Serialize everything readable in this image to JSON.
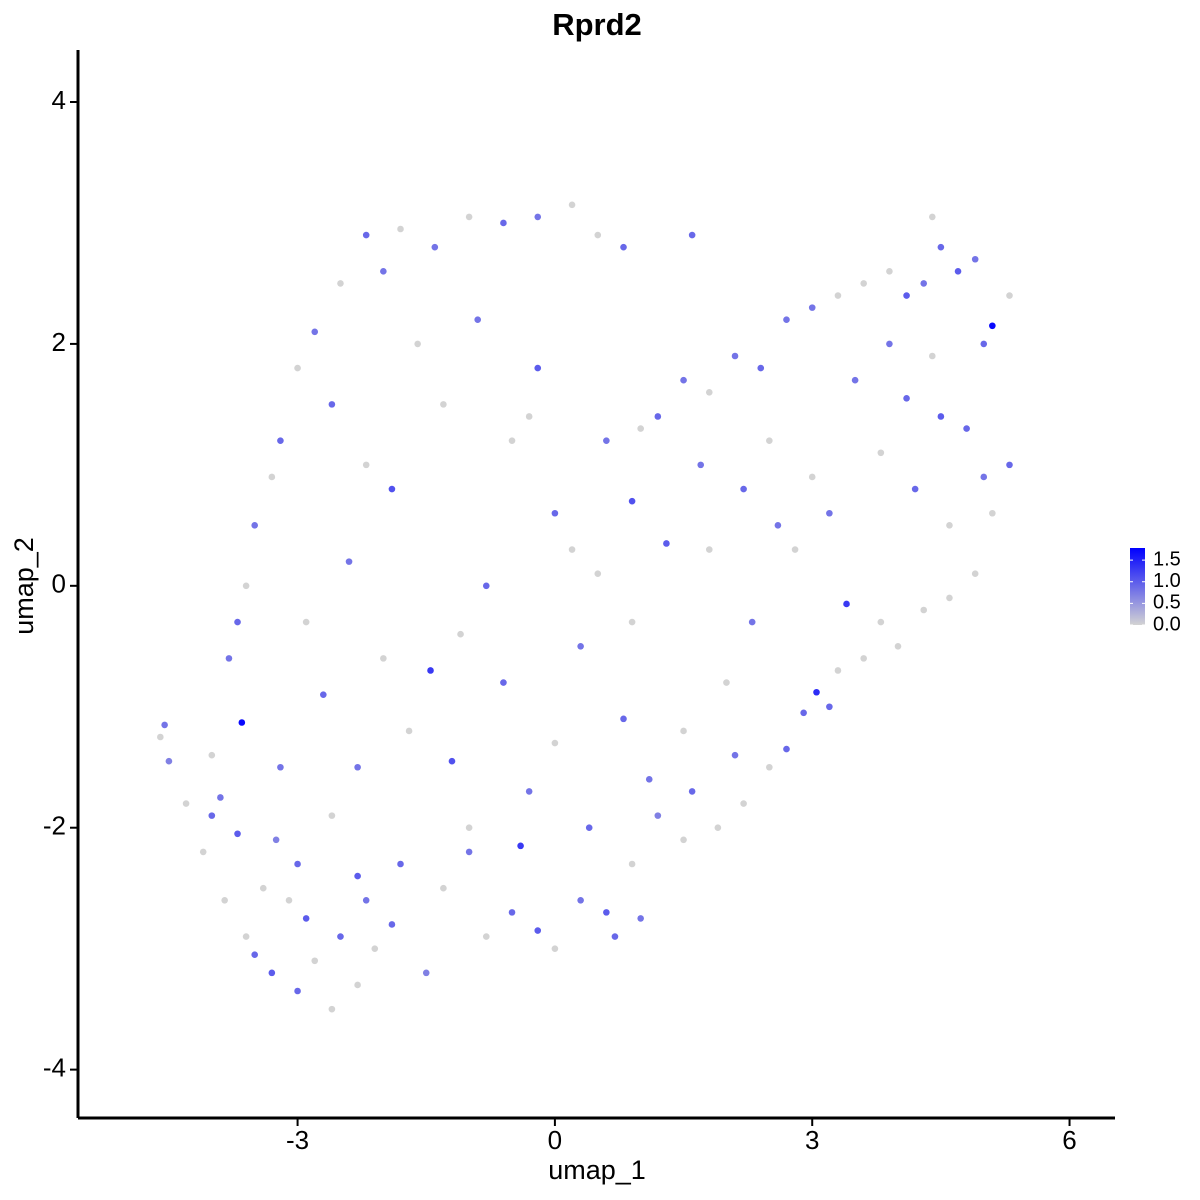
{
  "chart_data": {
    "type": "scatter",
    "title": "Rprd2",
    "x_label": "umap_1",
    "y_label": "umap_2",
    "xlim": [
      -5.56,
      6.53
    ],
    "xticks": [
      -3,
      0,
      3,
      6
    ],
    "ylim": [
      -4.4,
      4.43
    ],
    "yticks": [
      -4,
      -2,
      0,
      2,
      4
    ],
    "color_low": "#d3d3d3",
    "color_high": "#0000ff",
    "colorlim": [
      0,
      1.78
    ],
    "colorticks": [
      {
        "value": 0,
        "label": "0.0"
      },
      {
        "value": 0.5,
        "label": "0.5"
      },
      {
        "value": 1,
        "label": "1.0"
      },
      {
        "value": 1.5,
        "label": "1.5"
      }
    ],
    "x": [
      -4.6,
      -4.55,
      -4.5,
      -4.3,
      -4.1,
      -4.0,
      -3.9,
      -3.85,
      -3.65,
      -3.7,
      -3.6,
      -3.5,
      -3.4,
      -3.3,
      -3.25,
      -3.1,
      -3.0,
      -2.9,
      -2.8,
      -2.6,
      -2.5,
      -2.3,
      -2.2,
      -2.1,
      -1.9,
      -1.5,
      -1.3,
      -1.0,
      -0.8,
      -0.5,
      -0.4,
      -0.2,
      0.0,
      0.3,
      0.6,
      0.7,
      1.0,
      0.9,
      1.2,
      1.5,
      1.6,
      1.9,
      2.1,
      2.2,
      2.5,
      2.7,
      2.9,
      3.05,
      3.2,
      3.3,
      3.4,
      3.6,
      3.8,
      4.0,
      4.3,
      4.6,
      4.9,
      5.1,
      5.0,
      5.3,
      5.3,
      5.1,
      5.0,
      4.9,
      4.7,
      4.5,
      4.4,
      4.3,
      4.1,
      3.9,
      3.6,
      3.3,
      3.0,
      2.7,
      2.4,
      2.1,
      1.8,
      1.5,
      1.2,
      1.0,
      4.5,
      4.1,
      3.8,
      3.5,
      3.0,
      2.6,
      2.2,
      1.8,
      4.6,
      4.2,
      1.3,
      0.9,
      0.5,
      0.3,
      0.0,
      -0.2,
      -0.5,
      -0.8,
      -1.1,
      -1.45,
      -2.2,
      -1.8,
      -1.4,
      -1.0,
      -0.6,
      -0.2,
      0.2,
      0.5,
      0.8,
      1.6,
      -2.5,
      -2.8,
      -3.0,
      -3.2,
      -3.3,
      -3.5,
      -3.6,
      -3.7,
      -3.8,
      -4.0,
      -2.6,
      -2.2,
      -1.9,
      -2.4,
      -2.9,
      -2.7,
      -2.0,
      -2.3,
      -1.7,
      -1.2,
      -0.9,
      -1.6,
      -1.3,
      -0.3,
      0.6,
      0.2,
      -0.6,
      0.0,
      0.8,
      1.5,
      -0.3,
      -1.0,
      -1.8,
      -2.6,
      -3.2,
      -3.0,
      -2.3,
      0.4,
      1.1,
      2.0,
      2.3,
      2.8,
      3.2,
      4.4,
      4.8,
      3.9,
      2.5,
      1.7,
      -2.0,
      0.9
    ],
    "y": [
      -1.25,
      -1.15,
      -1.45,
      -1.8,
      -2.2,
      -1.9,
      -1.75,
      -2.6,
      -1.13,
      -2.05,
      -2.9,
      -3.05,
      -2.5,
      -3.2,
      -2.1,
      -2.6,
      -3.35,
      -2.75,
      -3.1,
      -3.5,
      -2.9,
      -3.3,
      -2.6,
      -3.0,
      -2.8,
      -3.2,
      -2.5,
      -2.2,
      -2.9,
      -2.7,
      -2.15,
      -2.85,
      -3.0,
      -2.6,
      -2.7,
      -2.9,
      -2.75,
      -2.3,
      -1.9,
      -2.1,
      -1.7,
      -2.0,
      -1.4,
      -1.8,
      -1.5,
      -1.35,
      -1.05,
      -0.88,
      -1.0,
      -0.7,
      -0.15,
      -0.6,
      -0.3,
      -0.5,
      -0.2,
      -0.1,
      0.1,
      0.6,
      0.9,
      1.0,
      2.4,
      2.15,
      2.0,
      2.7,
      2.6,
      2.8,
      3.05,
      2.5,
      2.4,
      2.6,
      2.5,
      2.4,
      2.3,
      2.2,
      1.8,
      1.9,
      1.6,
      1.7,
      1.4,
      1.3,
      1.4,
      1.55,
      1.1,
      1.7,
      0.9,
      0.5,
      0.8,
      0.3,
      0.5,
      0.8,
      0.35,
      0.7,
      0.1,
      -0.5,
      0.6,
      1.8,
      1.2,
      0.0,
      -0.4,
      -0.7,
      2.9,
      2.95,
      2.8,
      3.05,
      3.0,
      3.05,
      3.15,
      2.9,
      2.8,
      2.9,
      2.5,
      2.1,
      1.8,
      1.2,
      0.9,
      0.5,
      0.0,
      -0.3,
      -0.6,
      -1.4,
      1.5,
      1.0,
      0.8,
      0.2,
      -0.3,
      -0.9,
      -0.6,
      -1.5,
      -1.2,
      -1.45,
      2.2,
      2.0,
      1.5,
      1.4,
      1.2,
      0.3,
      -0.8,
      -1.3,
      -1.1,
      -1.2,
      -1.7,
      -2.0,
      -2.3,
      -1.9,
      -1.5,
      -2.3,
      -2.4,
      -2.0,
      -1.6,
      -0.8,
      -0.3,
      0.3,
      0.6,
      1.9,
      1.3,
      2.0,
      1.2,
      1.0,
      2.6,
      -0.3
    ],
    "expression": [
      0,
      0.8,
      0.7,
      0,
      0,
      0.9,
      0.8,
      0,
      1.7,
      1.0,
      0,
      0.9,
      0,
      1.0,
      0.7,
      0,
      0.9,
      1.0,
      0,
      0,
      0.9,
      0,
      0.8,
      0,
      0.9,
      0.7,
      0,
      0.8,
      0,
      0.9,
      1.3,
      1.0,
      0,
      0.8,
      1.0,
      0.9,
      0.8,
      0,
      0.7,
      0,
      0.9,
      0,
      0.8,
      0,
      0,
      0.9,
      0.9,
      1.4,
      0.9,
      0,
      1.3,
      0,
      0,
      0,
      0,
      0,
      0,
      0,
      0.8,
      0.9,
      0,
      1.7,
      0.9,
      0.8,
      1.0,
      0.9,
      0,
      0.8,
      1.0,
      0,
      0,
      0,
      0.8,
      0.8,
      0.9,
      0.8,
      0,
      0.8,
      0.9,
      0,
      1.0,
      0.9,
      0,
      0.8,
      0,
      0.8,
      0.9,
      0,
      0,
      0.9,
      1.0,
      1.1,
      0,
      0.8,
      0.9,
      1.0,
      0,
      0.9,
      0,
      1.3,
      0.9,
      0,
      0.8,
      0,
      0.9,
      0.8,
      0,
      0,
      0.9,
      0.9,
      0,
      0.8,
      0,
      0.9,
      0,
      0.8,
      0,
      0.9,
      0.8,
      0,
      0.9,
      0,
      1.1,
      0.8,
      0,
      0.9,
      0,
      0.8,
      0,
      1.1,
      0.8,
      0,
      0,
      0,
      0.8,
      0,
      0.9,
      0,
      0.9,
      0,
      0.8,
      0,
      0.9,
      0,
      0.8,
      0.9,
      1.0,
      0.9,
      0.8,
      0,
      0.8,
      0,
      0.8,
      0,
      0.9,
      0.8,
      0,
      0.8,
      0.8,
      0
    ]
  }
}
